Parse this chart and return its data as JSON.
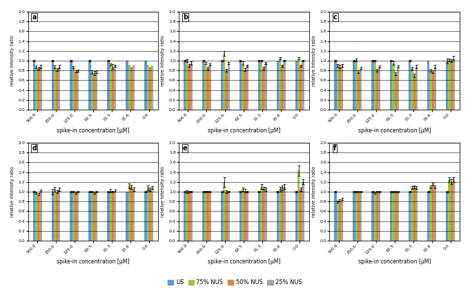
{
  "categories": [
    "500.0",
    "250.0",
    "125.0",
    "62.5",
    "31.3",
    "15.6",
    "0.0"
  ],
  "series_labels": [
    "US",
    "75% NUS",
    "50% NUS",
    "25% NUS"
  ],
  "colors": [
    "#5B9BD5",
    "#9DC641",
    "#ED7D31",
    "#A5A5A5"
  ],
  "subplot_labels": [
    "a",
    "b",
    "c",
    "d",
    "e",
    "f"
  ],
  "ylim": [
    0.0,
    2.0
  ],
  "yticks": [
    0.0,
    0.2,
    0.4,
    0.6,
    0.8,
    1.0,
    1.2,
    1.4,
    1.6,
    1.8,
    2.0
  ],
  "ylabel": "relative intensity ratio",
  "xlabel": "spike-in concentration [μM]",
  "data": {
    "a": {
      "values": [
        [
          1.0,
          1.0,
          1.0,
          1.0,
          1.0,
          1.0,
          1.0
        ],
        [
          0.87,
          0.87,
          0.87,
          0.77,
          0.92,
          0.92,
          0.92
        ],
        [
          0.85,
          0.82,
          0.78,
          0.75,
          0.88,
          0.88,
          0.88
        ],
        [
          0.88,
          0.88,
          0.8,
          0.78,
          0.9,
          0.9,
          0.9
        ]
      ],
      "errors": [
        [
          0.02,
          0.02,
          0.02,
          0.02,
          0.02,
          0.0,
          0.0
        ],
        [
          0.03,
          0.03,
          0.02,
          0.03,
          0.02,
          0.0,
          0.0
        ],
        [
          0.03,
          0.03,
          0.02,
          0.04,
          0.05,
          0.0,
          0.0
        ],
        [
          0.03,
          0.03,
          0.02,
          0.03,
          0.02,
          0.0,
          0.0
        ]
      ]
    },
    "b": {
      "values": [
        [
          1.0,
          1.0,
          1.0,
          1.0,
          1.0,
          1.0,
          1.0
        ],
        [
          1.0,
          0.95,
          1.15,
          0.95,
          1.0,
          1.05,
          1.05
        ],
        [
          0.9,
          0.85,
          0.8,
          0.82,
          0.85,
          0.9,
          0.9
        ],
        [
          0.95,
          0.92,
          0.95,
          0.9,
          0.95,
          1.0,
          1.0
        ]
      ],
      "errors": [
        [
          0.02,
          0.02,
          0.02,
          0.02,
          0.02,
          0.0,
          0.0
        ],
        [
          0.03,
          0.02,
          0.05,
          0.03,
          0.02,
          0.02,
          0.02
        ],
        [
          0.03,
          0.03,
          0.03,
          0.03,
          0.03,
          0.02,
          0.02
        ],
        [
          0.03,
          0.02,
          0.02,
          0.02,
          0.02,
          0.02,
          0.02
        ]
      ]
    },
    "c": {
      "values": [
        [
          1.0,
          1.0,
          1.0,
          1.0,
          1.0,
          1.0,
          1.0
        ],
        [
          0.9,
          1.02,
          1.0,
          0.95,
          0.85,
          0.8,
          1.02
        ],
        [
          0.88,
          0.78,
          0.8,
          0.73,
          0.7,
          0.78,
          1.0
        ],
        [
          0.9,
          0.85,
          0.88,
          0.88,
          0.88,
          0.88,
          1.05
        ]
      ],
      "errors": [
        [
          0.02,
          0.02,
          0.02,
          0.02,
          0.02,
          0.0,
          0.05
        ],
        [
          0.03,
          0.03,
          0.02,
          0.03,
          0.03,
          0.03,
          0.03
        ],
        [
          0.03,
          0.03,
          0.03,
          0.03,
          0.04,
          0.03,
          0.03
        ],
        [
          0.03,
          0.02,
          0.02,
          0.02,
          0.03,
          0.03,
          0.05
        ]
      ]
    },
    "d": {
      "values": [
        [
          1.0,
          1.0,
          1.0,
          1.0,
          1.0,
          1.0,
          1.0
        ],
        [
          0.98,
          1.05,
          1.0,
          1.0,
          1.02,
          1.12,
          1.08
        ],
        [
          0.95,
          1.0,
          0.98,
          0.98,
          1.0,
          1.1,
          1.05
        ],
        [
          1.02,
          1.05,
          1.0,
          1.0,
          1.02,
          1.05,
          1.08
        ]
      ],
      "errors": [
        [
          0.02,
          0.05,
          0.02,
          0.02,
          0.02,
          0.0,
          0.02
        ],
        [
          0.02,
          0.05,
          0.02,
          0.02,
          0.03,
          0.05,
          0.05
        ],
        [
          0.02,
          0.03,
          0.02,
          0.02,
          0.02,
          0.04,
          0.03
        ],
        [
          0.02,
          0.03,
          0.02,
          0.02,
          0.02,
          0.03,
          0.03
        ]
      ]
    },
    "e": {
      "values": [
        [
          1.0,
          1.0,
          1.0,
          1.0,
          1.0,
          1.0,
          1.0
        ],
        [
          1.0,
          1.0,
          1.2,
          1.05,
          1.1,
          1.05,
          1.43
        ],
        [
          1.0,
          1.0,
          1.0,
          1.02,
          1.07,
          1.08,
          1.05
        ],
        [
          1.0,
          1.0,
          1.0,
          1.0,
          1.05,
          1.1,
          1.2
        ]
      ],
      "errors": [
        [
          0.02,
          0.02,
          0.02,
          0.02,
          0.02,
          0.02,
          0.02
        ],
        [
          0.03,
          0.02,
          0.1,
          0.04,
          0.05,
          0.05,
          0.1
        ],
        [
          0.02,
          0.02,
          0.03,
          0.03,
          0.03,
          0.05,
          0.03
        ],
        [
          0.02,
          0.02,
          0.02,
          0.02,
          0.03,
          0.05,
          0.05
        ]
      ]
    },
    "f": {
      "values": [
        [
          1.0,
          1.0,
          1.0,
          1.0,
          1.0,
          1.0,
          1.0
        ],
        [
          0.8,
          1.0,
          0.98,
          1.0,
          1.08,
          1.1,
          1.25
        ],
        [
          0.82,
          1.0,
          1.0,
          1.0,
          1.1,
          1.15,
          1.2
        ],
        [
          0.85,
          1.0,
          1.0,
          1.0,
          1.08,
          1.1,
          1.25
        ]
      ],
      "errors": [
        [
          0.02,
          0.02,
          0.02,
          0.02,
          0.02,
          0.02,
          0.02
        ],
        [
          0.02,
          0.02,
          0.02,
          0.02,
          0.03,
          0.03,
          0.05
        ],
        [
          0.02,
          0.02,
          0.02,
          0.02,
          0.03,
          0.03,
          0.05
        ],
        [
          0.02,
          0.02,
          0.02,
          0.02,
          0.03,
          0.03,
          0.05
        ]
      ]
    }
  },
  "figsize": [
    6.81,
    4.22
  ],
  "dpi": 100,
  "bar_width": 0.12,
  "subplot_rows": 2,
  "subplot_cols": 3
}
